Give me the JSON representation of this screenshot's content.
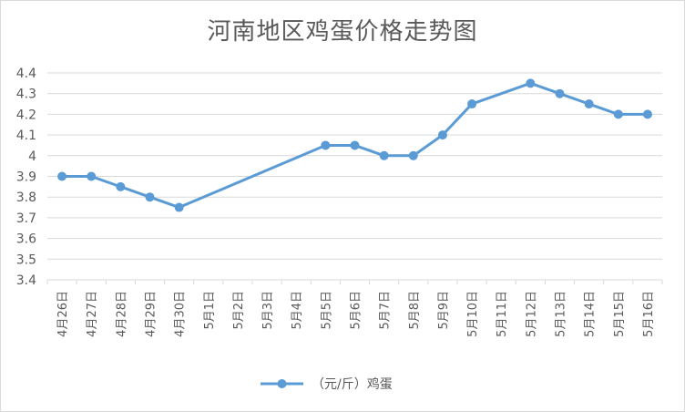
{
  "chart_data": {
    "type": "line",
    "title": "河南地区鸡蛋价格走势图",
    "categories": [
      "4月26日",
      "4月27日",
      "4月28日",
      "4月29日",
      "4月30日",
      "5月1日",
      "5月2日",
      "5月3日",
      "5月4日",
      "5月5日",
      "5月6日",
      "5月7日",
      "5月8日",
      "5月9日",
      "5月10日",
      "5月11日",
      "5月12日",
      "5月13日",
      "5月14日",
      "5月15日",
      "5月16日"
    ],
    "series": [
      {
        "name": "（元/斤）鸡蛋",
        "values": [
          3.9,
          3.9,
          3.85,
          3.8,
          3.75,
          null,
          null,
          null,
          null,
          4.05,
          4.05,
          4.0,
          4.0,
          4.1,
          4.25,
          null,
          4.35,
          4.3,
          4.25,
          4.2,
          4.2
        ]
      }
    ],
    "ylim": [
      3.4,
      4.4
    ],
    "yticks": [
      "3.4",
      "3.5",
      "3.6",
      "3.7",
      "3.8",
      "3.9",
      "4",
      "4.1",
      "4.2",
      "4.3",
      "4.4"
    ],
    "xlabel": "",
    "ylabel": "",
    "grid": true,
    "legend_position": "bottom",
    "color": "#5b9bd5"
  }
}
